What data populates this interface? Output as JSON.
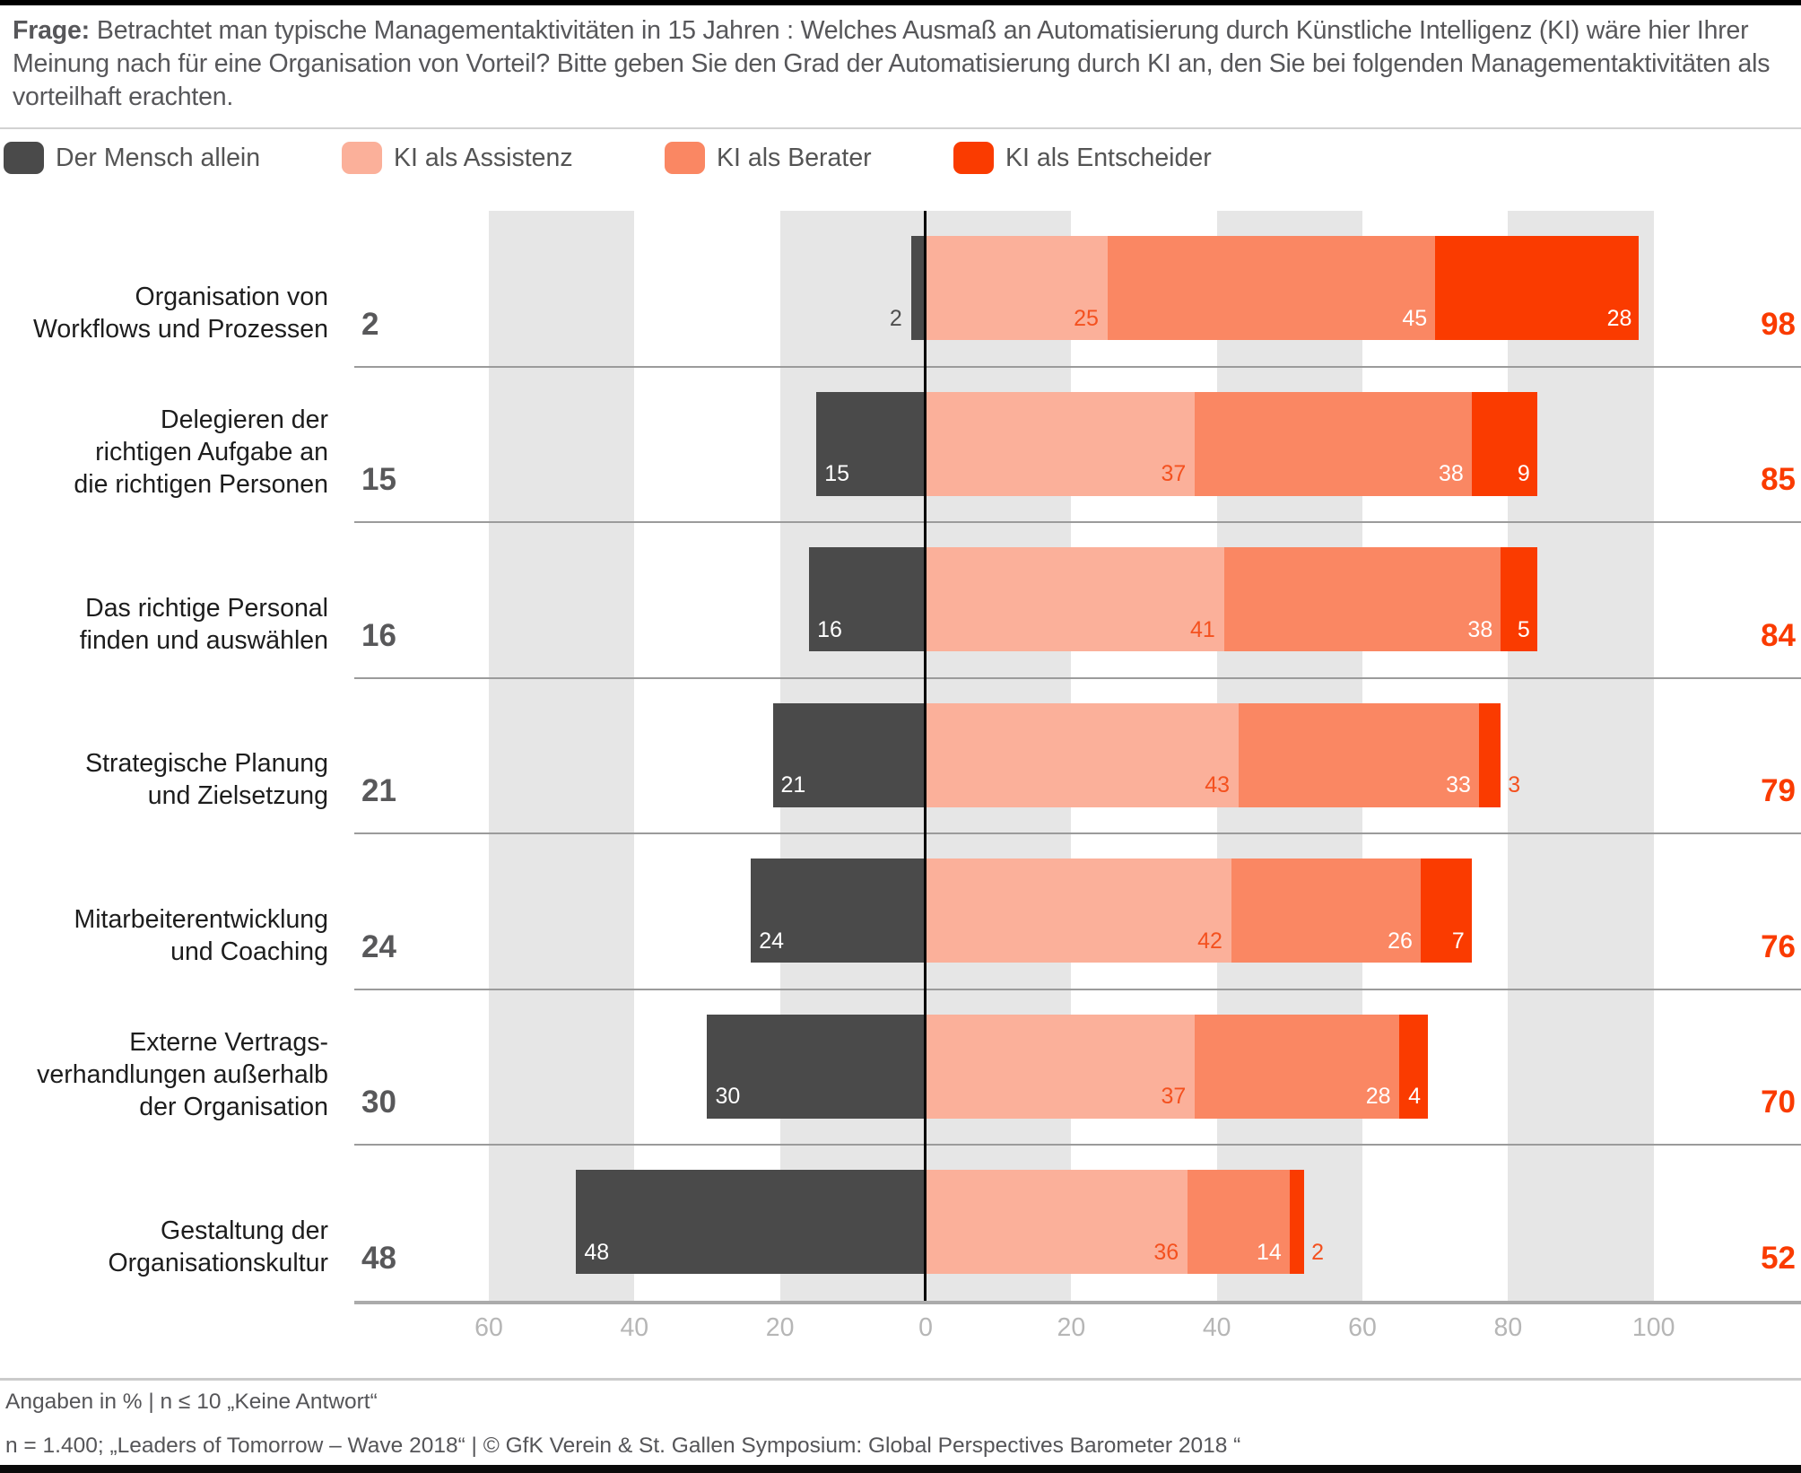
{
  "title": {
    "prefix": "Frage:",
    "text": "Betrachtet man typische Managementaktivitäten in 15 Jahren : Welches Ausmaß an Automatisierung durch Künstliche Intelligenz (KI) wäre hier Ihrer Meinung nach für eine Organisation von Vorteil? Bitte geben Sie den Grad der Automatisierung durch KI an, den Sie bei folgenden Managementaktivitäten als vorteilhaft erachten."
  },
  "legend": {
    "items": [
      {
        "label": "Der Mensch allein",
        "color": "#4a4a4a"
      },
      {
        "label": "KI als Assistenz",
        "color": "#fbb09a"
      },
      {
        "label": "KI als Berater",
        "color": "#fa8763"
      },
      {
        "label": "KI als Entscheider",
        "color": "#fa3b00"
      }
    ]
  },
  "chart_data": {
    "type": "bar",
    "variant": "horizontal-diverging-stacked",
    "unit": "percent",
    "series": [
      "Der Mensch allein",
      "KI als Assistenz",
      "KI als Berater",
      "KI als Entscheider"
    ],
    "colors": {
      "mensch": "#4a4a4a",
      "assistenz": "#fbb09a",
      "berater": "#fa8763",
      "entscheider": "#fa3b00",
      "total": "#fa3b00",
      "inbar_orange_label": "#f4511f",
      "outside_dark_label": "#4f4f4f",
      "band": "#e6e6e6"
    },
    "rows": [
      {
        "label_lines": [
          "Organisation von",
          "Workflows und Prozessen"
        ],
        "mensch": 2,
        "assistenz": 25,
        "berater": 45,
        "entscheider": 28,
        "ki_gesamt": 98
      },
      {
        "label_lines": [
          "Delegieren der",
          "richtigen Aufgabe an",
          "die richtigen Personen"
        ],
        "mensch": 15,
        "assistenz": 37,
        "berater": 38,
        "entscheider": 9,
        "ki_gesamt": 85
      },
      {
        "label_lines": [
          "Das richtige Personal",
          "finden und auswählen"
        ],
        "mensch": 16,
        "assistenz": 41,
        "berater": 38,
        "entscheider": 5,
        "ki_gesamt": 84
      },
      {
        "label_lines": [
          "Strategische Planung",
          "und Zielsetzung"
        ],
        "mensch": 21,
        "assistenz": 43,
        "berater": 33,
        "entscheider": 3,
        "ki_gesamt": 79
      },
      {
        "label_lines": [
          "Mitarbeiterentwicklung",
          "und Coaching"
        ],
        "mensch": 24,
        "assistenz": 42,
        "berater": 26,
        "entscheider": 7,
        "ki_gesamt": 76
      },
      {
        "label_lines": [
          "Externe Vertrags-",
          "verhandlungen außerhalb",
          "der Organisation"
        ],
        "mensch": 30,
        "assistenz": 37,
        "berater": 28,
        "entscheider": 4,
        "ki_gesamt": 70
      },
      {
        "label_lines": [
          "Gestaltung der",
          "Organisationskultur"
        ],
        "mensch": 48,
        "assistenz": 36,
        "berater": 14,
        "entscheider": 2,
        "ki_gesamt": 52
      }
    ],
    "x_ticks": [
      -60,
      -40,
      -20,
      0,
      20,
      40,
      60,
      80,
      100
    ],
    "x_tick_labels": [
      "60",
      "40",
      "20",
      "0",
      "20",
      "40",
      "60",
      "80",
      "100"
    ],
    "bands": [
      [
        -60,
        -40
      ],
      [
        -20,
        20
      ],
      [
        40,
        60
      ],
      [
        80,
        100
      ]
    ],
    "xlim": [
      -78,
      120
    ],
    "grid": "striped-bands",
    "legend_position": "top"
  },
  "footer": {
    "line1": "Angaben in % | n ≤ 10 „Keine Antwort“",
    "line2": "n = 1.400; „Leaders of Tomorrow – Wave 2018“ | © GfK Verein & St. Gallen Symposium: Global Perspectives Barometer 2018 “"
  }
}
